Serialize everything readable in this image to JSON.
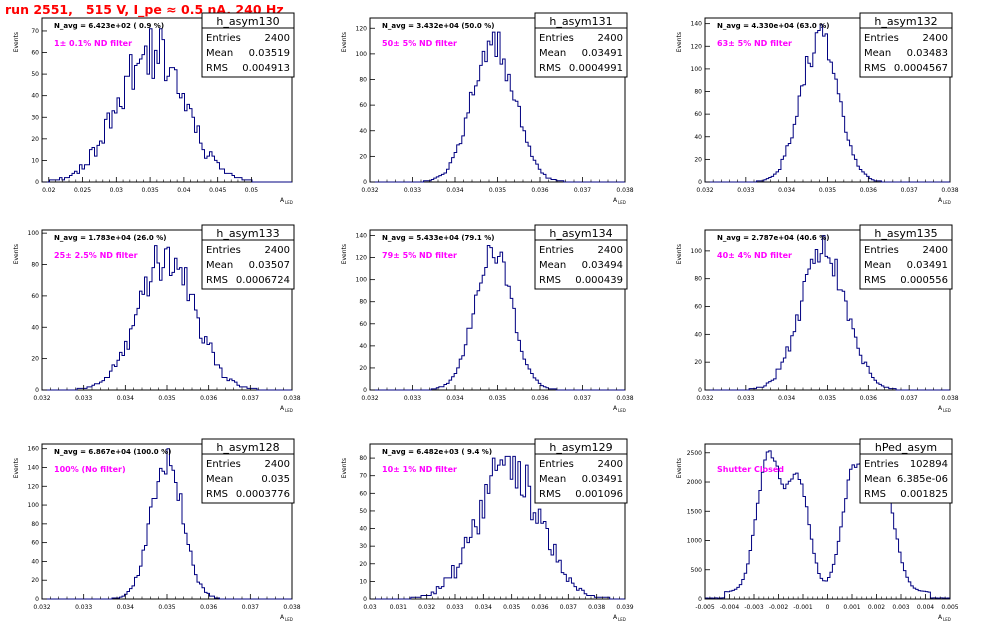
{
  "run_title": "run 2551,   515 V, I_pe ≈ 0.5 nA, 240 Hz",
  "colors": {
    "line": "#000080",
    "filter_label": "#ff00ff",
    "run_title": "#ff0000"
  },
  "axis_labels": {
    "y": "Events",
    "x": "A",
    "x_sub": "LED"
  },
  "stat_labels": {
    "entries": "Entries",
    "mean": "Mean",
    "rms": "RMS"
  },
  "chart_data": [
    {
      "type": "histogram",
      "name": "h_asym130",
      "navg": "N_avg = 6.423e+02 ( 0.9 %)",
      "filter": "1± 0.1% ND filter",
      "entries": "2400",
      "mean": "0.03519",
      "rms": "0.004913",
      "xlim": [
        0.019,
        0.056
      ],
      "ylim": [
        0,
        76
      ],
      "xticks": [
        {
          "v": 0.02,
          "l": "0.02"
        },
        {
          "v": 0.025,
          "l": "0.025"
        },
        {
          "v": 0.03,
          "l": "0.03"
        },
        {
          "v": 0.035,
          "l": "0.035"
        },
        {
          "v": 0.04,
          "l": "0.04"
        },
        {
          "v": 0.045,
          "l": "0.045"
        },
        {
          "v": 0.05,
          "l": "0.05"
        }
      ],
      "yticks": [
        0,
        10,
        20,
        30,
        40,
        50,
        60,
        70
      ],
      "shape": {
        "kind": "gauss",
        "mu": 0.0352,
        "sigma": 0.0049,
        "amp": 62,
        "noise": 0.2,
        "seed": 11
      },
      "bins": 100
    },
    {
      "type": "histogram",
      "name": "h_asym131",
      "navg": "N_avg = 3.432e+04 (50.0 %)",
      "filter": "50± 5% ND filter",
      "entries": "2400",
      "mean": "0.03491",
      "rms": "0.0004991",
      "xlim": [
        0.032,
        0.038
      ],
      "ylim": [
        0,
        128
      ],
      "xticks": [
        {
          "v": 0.032,
          "l": "0.032"
        },
        {
          "v": 0.033,
          "l": "0.033"
        },
        {
          "v": 0.034,
          "l": "0.034"
        },
        {
          "v": 0.035,
          "l": "0.035"
        },
        {
          "v": 0.036,
          "l": "0.036"
        },
        {
          "v": 0.037,
          "l": "0.037"
        },
        {
          "v": 0.038,
          "l": "0.038"
        }
      ],
      "yticks": [
        0,
        20,
        40,
        60,
        80,
        100,
        120
      ],
      "shape": {
        "kind": "gauss",
        "mu": 0.0349,
        "sigma": 0.0005,
        "amp": 110,
        "noise": 0.12,
        "seed": 21
      },
      "bins": 100
    },
    {
      "type": "histogram",
      "name": "h_asym132",
      "navg": "N_avg = 4.330e+04 (63.0 %)",
      "filter": "63± 5% ND filter",
      "entries": "2400",
      "mean": "0.03483",
      "rms": "0.0004567",
      "xlim": [
        0.032,
        0.038
      ],
      "ylim": [
        0,
        145
      ],
      "xticks": [
        {
          "v": 0.032,
          "l": "0.032"
        },
        {
          "v": 0.033,
          "l": "0.033"
        },
        {
          "v": 0.034,
          "l": "0.034"
        },
        {
          "v": 0.035,
          "l": "0.035"
        },
        {
          "v": 0.036,
          "l": "0.036"
        },
        {
          "v": 0.037,
          "l": "0.037"
        },
        {
          "v": 0.038,
          "l": "0.038"
        }
      ],
      "yticks": [
        0,
        20,
        40,
        60,
        80,
        100,
        120,
        140
      ],
      "shape": {
        "kind": "gauss",
        "mu": 0.0348,
        "sigma": 0.00046,
        "amp": 125,
        "noise": 0.12,
        "seed": 31
      },
      "bins": 100
    },
    {
      "type": "histogram",
      "name": "h_asym133",
      "navg": "N_avg = 1.783e+04 (26.0 %)",
      "filter": "25± 2.5% ND filter",
      "entries": "2400",
      "mean": "0.03507",
      "rms": "0.0006724",
      "xlim": [
        0.032,
        0.038
      ],
      "ylim": [
        0,
        102
      ],
      "xticks": [
        {
          "v": 0.032,
          "l": "0.032"
        },
        {
          "v": 0.033,
          "l": "0.033"
        },
        {
          "v": 0.034,
          "l": "0.034"
        },
        {
          "v": 0.035,
          "l": "0.035"
        },
        {
          "v": 0.036,
          "l": "0.036"
        },
        {
          "v": 0.037,
          "l": "0.037"
        },
        {
          "v": 0.038,
          "l": "0.038"
        }
      ],
      "yticks": [
        0,
        20,
        40,
        60,
        80,
        100
      ],
      "shape": {
        "kind": "gauss",
        "mu": 0.035,
        "sigma": 0.00067,
        "amp": 85,
        "noise": 0.14,
        "seed": 41
      },
      "bins": 100
    },
    {
      "type": "histogram",
      "name": "h_asym134",
      "navg": "N_avg = 5.433e+04 (79.1 %)",
      "filter": "79± 5% ND filter",
      "entries": "2400",
      "mean": "0.03494",
      "rms": "0.000439",
      "xlim": [
        0.032,
        0.038
      ],
      "ylim": [
        0,
        145
      ],
      "xticks": [
        {
          "v": 0.032,
          "l": "0.032"
        },
        {
          "v": 0.033,
          "l": "0.033"
        },
        {
          "v": 0.034,
          "l": "0.034"
        },
        {
          "v": 0.035,
          "l": "0.035"
        },
        {
          "v": 0.036,
          "l": "0.036"
        },
        {
          "v": 0.037,
          "l": "0.037"
        },
        {
          "v": 0.038,
          "l": "0.038"
        }
      ],
      "yticks": [
        0,
        20,
        40,
        60,
        80,
        100,
        120,
        140
      ],
      "shape": {
        "kind": "gauss",
        "mu": 0.0349,
        "sigma": 0.00044,
        "amp": 128,
        "noise": 0.1,
        "seed": 51
      },
      "bins": 100
    },
    {
      "type": "histogram",
      "name": "h_asym135",
      "navg": "N_avg = 2.787e+04 (40.6 %)",
      "filter": "40± 4% ND filter",
      "entries": "2400",
      "mean": "0.03491",
      "rms": "0.000556",
      "xlim": [
        0.032,
        0.038
      ],
      "ylim": [
        0,
        115
      ],
      "xticks": [
        {
          "v": 0.032,
          "l": "0.032"
        },
        {
          "v": 0.033,
          "l": "0.033"
        },
        {
          "v": 0.034,
          "l": "0.034"
        },
        {
          "v": 0.035,
          "l": "0.035"
        },
        {
          "v": 0.036,
          "l": "0.036"
        },
        {
          "v": 0.037,
          "l": "0.037"
        },
        {
          "v": 0.038,
          "l": "0.038"
        }
      ],
      "yticks": [
        0,
        20,
        40,
        60,
        80,
        100
      ],
      "shape": {
        "kind": "gauss",
        "mu": 0.0349,
        "sigma": 0.00055,
        "amp": 100,
        "noise": 0.12,
        "seed": 61
      },
      "bins": 100
    },
    {
      "type": "histogram",
      "name": "h_asym128",
      "navg": "N_avg = 6.867e+04 (100.0 %)",
      "filter": "100% (No filter)",
      "entries": "2400",
      "mean": "0.035",
      "rms": "0.0003776",
      "xlim": [
        0.032,
        0.038
      ],
      "ylim": [
        0,
        165
      ],
      "xticks": [
        {
          "v": 0.032,
          "l": "0.032"
        },
        {
          "v": 0.033,
          "l": "0.033"
        },
        {
          "v": 0.034,
          "l": "0.034"
        },
        {
          "v": 0.035,
          "l": "0.035"
        },
        {
          "v": 0.036,
          "l": "0.036"
        },
        {
          "v": 0.037,
          "l": "0.037"
        },
        {
          "v": 0.038,
          "l": "0.038"
        }
      ],
      "yticks": [
        0,
        20,
        40,
        60,
        80,
        100,
        120,
        140,
        160
      ],
      "shape": {
        "kind": "gauss",
        "mu": 0.035,
        "sigma": 0.00038,
        "amp": 150,
        "noise": 0.1,
        "seed": 71
      },
      "bins": 100
    },
    {
      "type": "histogram",
      "name": "h_asym129",
      "navg": "N_avg = 6.482e+03 ( 9.4 %)",
      "filter": "10± 1% ND filter",
      "entries": "2400",
      "mean": "0.03491",
      "rms": "0.001096",
      "xlim": [
        0.03,
        0.039
      ],
      "ylim": [
        0,
        88
      ],
      "xticks": [
        {
          "v": 0.03,
          "l": "0.03"
        },
        {
          "v": 0.031,
          "l": "0.031"
        },
        {
          "v": 0.032,
          "l": "0.032"
        },
        {
          "v": 0.033,
          "l": "0.033"
        },
        {
          "v": 0.034,
          "l": "0.034"
        },
        {
          "v": 0.035,
          "l": "0.035"
        },
        {
          "v": 0.036,
          "l": "0.036"
        },
        {
          "v": 0.037,
          "l": "0.037"
        },
        {
          "v": 0.038,
          "l": "0.038"
        },
        {
          "v": 0.039,
          "l": "0.039"
        }
      ],
      "yticks": [
        0,
        10,
        20,
        30,
        40,
        50,
        60,
        70,
        80
      ],
      "shape": {
        "kind": "gauss",
        "mu": 0.0349,
        "sigma": 0.0011,
        "amp": 75,
        "noise": 0.18,
        "seed": 81
      },
      "bins": 100
    },
    {
      "type": "histogram",
      "name": "hPed_asym",
      "navg": "",
      "filter": "Shutter Closed",
      "entries": "102894",
      "mean": "6.385e-06",
      "rms": "0.001825",
      "xlim": [
        -0.005,
        0.005
      ],
      "ylim": [
        0,
        2650
      ],
      "xticks": [
        {
          "v": -0.005,
          "l": "-0.005"
        },
        {
          "v": -0.004,
          "l": "-0.004"
        },
        {
          "v": -0.003,
          "l": "-0.003"
        },
        {
          "v": -0.002,
          "l": "-0.002"
        },
        {
          "v": -0.001,
          "l": "-0.001"
        },
        {
          "v": 0,
          "l": "0"
        },
        {
          "v": 0.001,
          "l": "0.001"
        },
        {
          "v": 0.002,
          "l": "0.002"
        },
        {
          "v": 0.003,
          "l": "0.003"
        },
        {
          "v": 0.004,
          "l": "0.004"
        },
        {
          "v": 0.005,
          "l": "0.005"
        }
      ],
      "yticks": [
        0,
        500,
        1000,
        1500,
        2000,
        2500
      ],
      "shape": {
        "kind": "ped",
        "noise": 0.03,
        "seed": 91
      },
      "bins": 100
    }
  ]
}
